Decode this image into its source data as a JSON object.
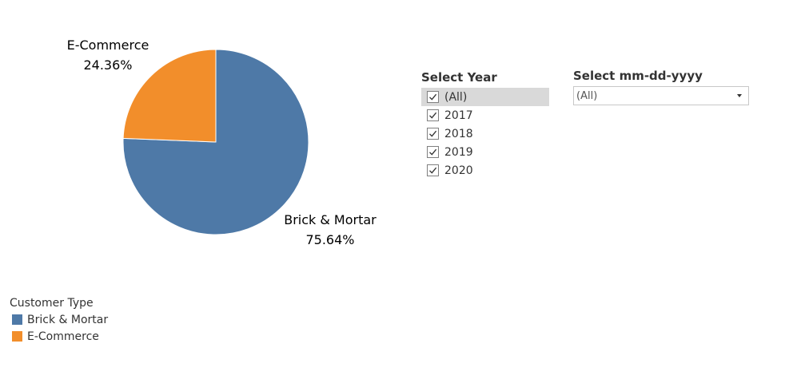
{
  "chart_data": {
    "type": "pie",
    "slices": [
      {
        "label": "Brick & Mortar",
        "value": 75.64,
        "value_label": "75.64%",
        "color": "#4e79a7"
      },
      {
        "label": "E-Commerce",
        "value": 24.36,
        "value_label": "24.36%",
        "color": "#f28e2b"
      }
    ],
    "legend": {
      "title": "Customer Type",
      "placement": "bottom-left",
      "items": [
        {
          "label": "Brick & Mortar",
          "color": "#4e79a7"
        },
        {
          "label": "E-Commerce",
          "color": "#f28e2b"
        }
      ]
    }
  },
  "year_filter": {
    "title": "Select Year",
    "options": [
      {
        "label": "(All)",
        "checked": true,
        "highlighted": true
      },
      {
        "label": "2017",
        "checked": true
      },
      {
        "label": "2018",
        "checked": true
      },
      {
        "label": "2019",
        "checked": true
      },
      {
        "label": "2020",
        "checked": true
      }
    ]
  },
  "date_filter": {
    "title": "Select mm-dd-yyyy",
    "selected": "(All)"
  }
}
